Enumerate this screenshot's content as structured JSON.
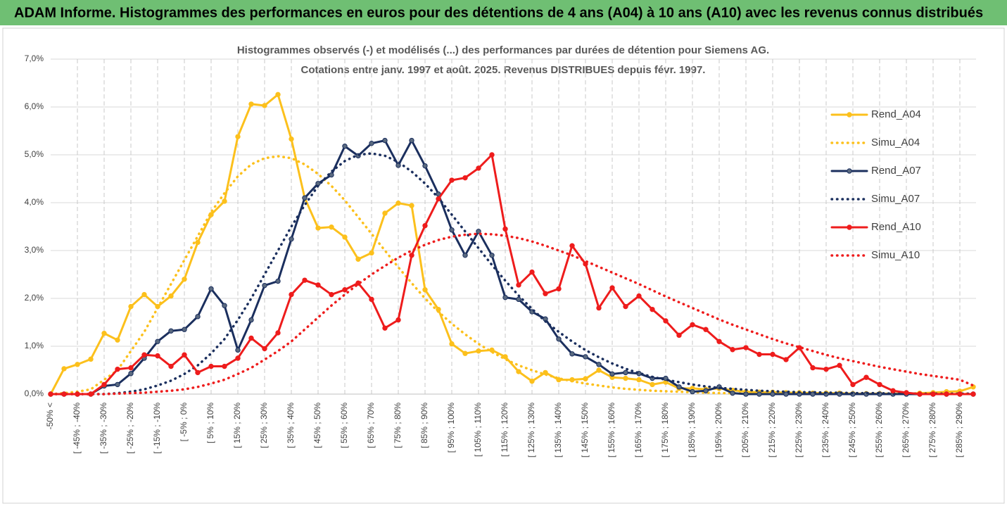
{
  "chart_data": {
    "type": "line",
    "title": "ADAM Informe. Histogrammes des performances en euros pour des détentions de 4 ans (A04) à 10 ans (A10) avec les revenus connus distribués",
    "subtitle": [
      "Histogrammes observés (-) et modélisés (...)  des performances par durées de détention pour Siemens AG.",
      "Cotations entre janv. 1997 et août. 2025. Revenus DISTRIBUES depuis févr. 1997."
    ],
    "categories": [
      "-50% <",
      null,
      "[ -45% ; -40%",
      null,
      "[ -35% ; -30%",
      null,
      "[ -25% ; -20%",
      null,
      "[ -15% ; -10%",
      null,
      "[ -5% ; 0%",
      null,
      "[ 5% ; 10%",
      null,
      "[ 15% ; 20%",
      null,
      "[ 25% ; 30%",
      null,
      "[ 35% ; 40%",
      null,
      "[ 45% ; 50%",
      null,
      "[ 55% ; 60%",
      null,
      "[ 65% ; 70%",
      null,
      "[ 75% ; 80%",
      null,
      "[ 85% ; 90%",
      null,
      "[ 95% ; 100%",
      null,
      "[ 105% ; 110%",
      null,
      "[ 115% ; 120%",
      null,
      "[ 125% ; 130%",
      null,
      "[ 135% ; 140%",
      null,
      "[ 145% ; 150%",
      null,
      "[ 155% ; 160%",
      null,
      "[ 165% ; 170%",
      null,
      "[ 175% ; 180%",
      null,
      "[ 185% ; 190%",
      null,
      "[ 195% ; 200%",
      null,
      "[ 205% ; 210%",
      null,
      "[ 215% ; 220%",
      null,
      "[ 225% ; 230%",
      null,
      "[ 235% ; 240%",
      null,
      "[ 245% ; 250%",
      null,
      "[ 255% ; 260%",
      null,
      "[ 265% ; 270%",
      null,
      "[ 275% ; 280%",
      null,
      "[ 285% ; 290%",
      null
    ],
    "ylim": [
      0,
      7
    ],
    "yticks": [
      {
        "value": 0,
        "label": "0,0%"
      },
      {
        "value": 1,
        "label": "1,0%"
      },
      {
        "value": 2,
        "label": "2,0%"
      },
      {
        "value": 3,
        "label": "3,0%"
      },
      {
        "value": 4,
        "label": "4,0%"
      },
      {
        "value": 5,
        "label": "5,0%"
      },
      {
        "value": 6,
        "label": "6,0%"
      },
      {
        "value": 7,
        "label": "7,0%"
      }
    ],
    "grid": true,
    "legend": "right",
    "series": [
      {
        "name": "Rend_A04",
        "color": "#fcc01c",
        "style": "solid",
        "values": [
          0,
          0.53,
          0.62,
          0.73,
          1.27,
          1.13,
          1.83,
          2.08,
          1.83,
          2.05,
          2.4,
          3.17,
          3.75,
          4.03,
          5.38,
          6.06,
          6.03,
          6.26,
          5.33,
          4.1,
          3.47,
          3.49,
          3.28,
          2.82,
          2.95,
          3.78,
          3.99,
          3.94,
          2.18,
          1.77,
          1.05,
          0.85,
          0.9,
          0.92,
          0.78,
          0.47,
          0.27,
          0.45,
          0.3,
          0.3,
          0.32,
          0.5,
          0.35,
          0.33,
          0.3,
          0.2,
          0.25,
          0.12,
          0.12,
          0.1,
          0.12,
          0.08,
          0.05,
          0.04,
          0.04,
          0.03,
          0.03,
          0.02,
          0.02,
          0.02,
          0.01,
          0.01,
          0.01,
          0.01,
          0.01,
          0.02,
          0.03,
          0.05,
          0.06,
          0.15
        ]
      },
      {
        "name": "Simu_A04",
        "color": "#fcc01c",
        "style": "dotted",
        "values": [
          0,
          0.02,
          0.05,
          0.1,
          0.3,
          0.5,
          0.9,
          1.3,
          1.8,
          2.3,
          2.8,
          3.3,
          3.8,
          4.2,
          4.55,
          4.8,
          4.93,
          4.97,
          4.93,
          4.8,
          4.6,
          4.35,
          4.05,
          3.7,
          3.35,
          3.0,
          2.65,
          2.32,
          2.0,
          1.72,
          1.47,
          1.25,
          1.05,
          0.88,
          0.73,
          0.6,
          0.5,
          0.41,
          0.33,
          0.27,
          0.22,
          0.18,
          0.14,
          0.11,
          0.09,
          0.07,
          0.06,
          0.05,
          0.04,
          0.03,
          0.02,
          0.02,
          0.02,
          0.01,
          0.01,
          0.01,
          0.01,
          0.01,
          0.01,
          0.01,
          0.01,
          0.01,
          0.01,
          0.01,
          0.01,
          0.01,
          0.01,
          0.01,
          0.01,
          0.01
        ]
      },
      {
        "name": "Rend_A07",
        "color": "#1b2f5e",
        "style": "solid",
        "values": [
          0,
          0,
          0,
          0,
          0.17,
          0.2,
          0.43,
          0.75,
          1.1,
          1.32,
          1.35,
          1.62,
          2.2,
          1.85,
          0.92,
          1.55,
          2.27,
          2.36,
          3.24,
          4.1,
          4.4,
          4.58,
          5.18,
          4.98,
          5.24,
          5.3,
          4.78,
          5.3,
          4.77,
          4.18,
          3.43,
          2.9,
          3.4,
          2.9,
          2.02,
          1.98,
          1.72,
          1.57,
          1.15,
          0.84,
          0.78,
          0.62,
          0.42,
          0.45,
          0.43,
          0.33,
          0.33,
          0.15,
          0.05,
          0.07,
          0.15,
          0.02,
          0,
          0,
          0,
          0,
          0,
          0,
          0,
          0,
          0,
          0,
          0,
          0,
          0,
          0,
          0,
          0,
          0,
          0
        ]
      },
      {
        "name": "Simu_A07",
        "color": "#1b2f5e",
        "style": "dotted",
        "values": [
          0,
          0,
          0,
          0,
          0,
          0.02,
          0.05,
          0.1,
          0.18,
          0.28,
          0.42,
          0.6,
          0.85,
          1.15,
          1.55,
          2.0,
          2.5,
          3.0,
          3.5,
          3.95,
          4.35,
          4.65,
          4.87,
          5.0,
          5.03,
          4.98,
          4.85,
          4.65,
          4.4,
          4.1,
          3.75,
          3.4,
          3.05,
          2.7,
          2.37,
          2.06,
          1.78,
          1.52,
          1.3,
          1.1,
          0.92,
          0.77,
          0.64,
          0.53,
          0.44,
          0.36,
          0.3,
          0.25,
          0.2,
          0.16,
          0.13,
          0.11,
          0.09,
          0.07,
          0.06,
          0.05,
          0.04,
          0.04,
          0.03,
          0.03,
          0.02,
          0.02,
          0.02,
          0.01,
          0.01,
          0.01,
          0.01,
          0.01,
          0.01,
          0.01
        ]
      },
      {
        "name": "Rend_A10",
        "color": "#ee1c1c",
        "style": "solid",
        "values": [
          0,
          0,
          0,
          0,
          0.2,
          0.52,
          0.55,
          0.82,
          0.8,
          0.58,
          0.82,
          0.45,
          0.58,
          0.58,
          0.75,
          1.17,
          0.95,
          1.28,
          2.08,
          2.38,
          2.28,
          2.08,
          2.18,
          2.32,
          1.98,
          1.38,
          1.55,
          2.9,
          3.52,
          4.08,
          4.47,
          4.52,
          4.72,
          5.0,
          3.45,
          2.28,
          2.55,
          2.1,
          2.2,
          3.1,
          2.72,
          1.8,
          2.22,
          1.83,
          2.05,
          1.77,
          1.53,
          1.23,
          1.45,
          1.35,
          1.1,
          0.93,
          0.97,
          0.83,
          0.83,
          0.72,
          0.97,
          0.55,
          0.52,
          0.6,
          0.2,
          0.35,
          0.2,
          0.07,
          0.03,
          0,
          0,
          0,
          0,
          0
        ]
      },
      {
        "name": "Simu_A10",
        "color": "#ee1c1c",
        "style": "dotted",
        "values": [
          0,
          0,
          0,
          0,
          0,
          0.01,
          0.02,
          0.03,
          0.05,
          0.07,
          0.1,
          0.15,
          0.22,
          0.3,
          0.42,
          0.55,
          0.72,
          0.9,
          1.1,
          1.35,
          1.6,
          1.85,
          2.08,
          2.3,
          2.5,
          2.68,
          2.85,
          3.0,
          3.12,
          3.22,
          3.29,
          3.33,
          3.35,
          3.34,
          3.31,
          3.26,
          3.19,
          3.1,
          3.0,
          2.9,
          2.78,
          2.66,
          2.54,
          2.42,
          2.3,
          2.17,
          2.04,
          1.92,
          1.8,
          1.68,
          1.56,
          1.45,
          1.35,
          1.25,
          1.15,
          1.06,
          0.98,
          0.9,
          0.82,
          0.75,
          0.69,
          0.63,
          0.57,
          0.52,
          0.47,
          0.42,
          0.38,
          0.34,
          0.3,
          0.18
        ]
      }
    ]
  }
}
